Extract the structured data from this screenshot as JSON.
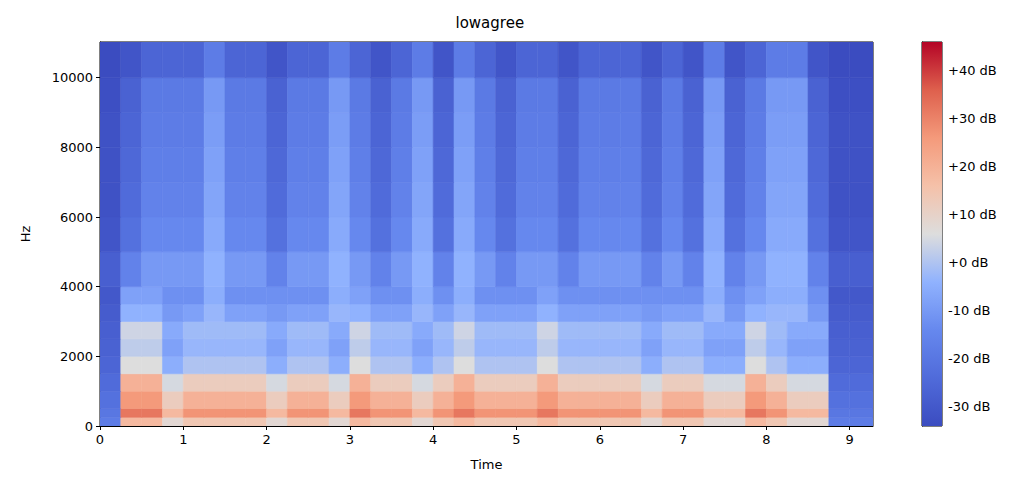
{
  "chart_data": {
    "type": "heatmap",
    "title": "lowagree",
    "x_label": "Time",
    "y_label": "Hz",
    "xlim": [
      0,
      9.28
    ],
    "xticks": [
      0,
      1,
      2,
      3,
      4,
      5,
      6,
      7,
      8,
      9
    ],
    "ylim": [
      0,
      11025
    ],
    "yticks": [
      0,
      2000,
      4000,
      6000,
      8000,
      10000
    ],
    "time_bins": [
      0,
      0.25,
      0.5,
      0.75,
      1.0,
      1.25,
      1.5,
      1.75,
      2.0,
      2.25,
      2.5,
      2.75,
      3.0,
      3.25,
      3.5,
      3.75,
      4.0,
      4.25,
      4.5,
      4.75,
      5.0,
      5.25,
      5.5,
      5.75,
      6.0,
      6.25,
      6.5,
      6.75,
      7.0,
      7.25,
      7.5,
      7.75,
      8.0,
      8.25,
      8.5,
      8.75,
      9.0,
      9.28
    ],
    "freq_bins": [
      0,
      250,
      500,
      1000,
      1500,
      2000,
      2500,
      3000,
      3500,
      4000,
      5000,
      6000,
      7000,
      8000,
      9000,
      10000,
      11025
    ],
    "cells": [
      [
        -18,
        18,
        18,
        8,
        14,
        14,
        14,
        14,
        8,
        14,
        14,
        8,
        18,
        14,
        14,
        8,
        14,
        18,
        14,
        14,
        14,
        18,
        14,
        14,
        14,
        14,
        8,
        14,
        14,
        8,
        8,
        18,
        14,
        8,
        8,
        -18,
        -18
      ],
      [
        -20,
        32,
        32,
        18,
        27,
        27,
        27,
        27,
        18,
        27,
        27,
        18,
        32,
        27,
        27,
        18,
        27,
        32,
        27,
        27,
        27,
        32,
        27,
        27,
        27,
        27,
        18,
        27,
        27,
        18,
        18,
        32,
        27,
        18,
        18,
        -20,
        -20
      ],
      [
        -22,
        26,
        26,
        12,
        20,
        20,
        20,
        20,
        12,
        20,
        20,
        12,
        26,
        20,
        20,
        12,
        20,
        26,
        20,
        20,
        20,
        26,
        20,
        20,
        20,
        20,
        12,
        20,
        20,
        12,
        12,
        26,
        20,
        12,
        12,
        -22,
        -22
      ],
      [
        -24,
        20,
        20,
        5,
        12,
        12,
        12,
        12,
        5,
        12,
        12,
        5,
        20,
        12,
        12,
        5,
        12,
        20,
        12,
        12,
        12,
        20,
        12,
        12,
        12,
        12,
        5,
        12,
        12,
        5,
        5,
        20,
        12,
        5,
        5,
        -24,
        -24
      ],
      [
        -26,
        6,
        6,
        -5,
        0,
        0,
        0,
        0,
        -5,
        0,
        0,
        -5,
        6,
        0,
        0,
        -5,
        0,
        6,
        0,
        0,
        0,
        6,
        0,
        0,
        0,
        0,
        -5,
        0,
        0,
        -5,
        -5,
        6,
        0,
        -5,
        -5,
        -26,
        -26
      ],
      [
        -27,
        2,
        2,
        -8,
        -3,
        -3,
        -3,
        -3,
        -8,
        -3,
        -3,
        -8,
        2,
        -3,
        -3,
        -8,
        -3,
        2,
        -3,
        -3,
        -3,
        2,
        -3,
        -3,
        -3,
        -3,
        -8,
        -3,
        -3,
        -8,
        -8,
        2,
        -3,
        -8,
        -8,
        -27,
        -27
      ],
      [
        -28,
        4,
        4,
        -6,
        -2,
        -2,
        -2,
        -2,
        -6,
        -2,
        -2,
        -6,
        4,
        -2,
        -2,
        -6,
        -2,
        4,
        -2,
        -2,
        -2,
        4,
        -2,
        -2,
        -2,
        -2,
        -6,
        -2,
        -2,
        -6,
        -6,
        4,
        -2,
        -6,
        -6,
        -28,
        -28
      ],
      [
        -29,
        -4,
        -4,
        -10,
        -8,
        -3,
        -8,
        -8,
        -10,
        -8,
        -8,
        -3,
        -4,
        -8,
        -8,
        -3,
        -8,
        -3,
        -8,
        -8,
        -8,
        -4,
        -8,
        -8,
        -8,
        -8,
        -10,
        -8,
        -8,
        -3,
        -10,
        -4,
        -3,
        -3,
        -10,
        -29,
        -29
      ],
      [
        -30,
        -8,
        -8,
        -12,
        -12,
        -5,
        -12,
        -12,
        -12,
        -12,
        -12,
        -5,
        -8,
        -12,
        -12,
        -5,
        -12,
        -5,
        -12,
        -12,
        -12,
        -8,
        -12,
        -12,
        -12,
        -12,
        -12,
        -12,
        -12,
        -5,
        -12,
        -8,
        -5,
        -5,
        -12,
        -30,
        -30
      ],
      [
        -28,
        -16,
        -10,
        -10,
        -10,
        -4,
        -10,
        -10,
        -16,
        -10,
        -10,
        -4,
        -10,
        -16,
        -10,
        -4,
        -16,
        -4,
        -10,
        -16,
        -10,
        -10,
        -16,
        -10,
        -10,
        -10,
        -16,
        -10,
        -16,
        -4,
        -16,
        -10,
        -4,
        -4,
        -16,
        -28,
        -28
      ],
      [
        -31,
        -22,
        -14,
        -14,
        -14,
        -6,
        -14,
        -14,
        -22,
        -14,
        -14,
        -6,
        -14,
        -22,
        -14,
        -6,
        -22,
        -6,
        -14,
        -22,
        -14,
        -14,
        -22,
        -14,
        -14,
        -14,
        -22,
        -14,
        -22,
        -6,
        -22,
        -14,
        -6,
        -6,
        -22,
        -31,
        -31
      ],
      [
        -32,
        -24,
        -16,
        -16,
        -16,
        -7,
        -16,
        -16,
        -24,
        -16,
        -16,
        -7,
        -16,
        -24,
        -16,
        -7,
        -24,
        -7,
        -16,
        -24,
        -16,
        -16,
        -24,
        -16,
        -16,
        -16,
        -24,
        -16,
        -24,
        -7,
        -24,
        -16,
        -7,
        -7,
        -24,
        -32,
        -32
      ],
      [
        -32,
        -25,
        -17,
        -17,
        -17,
        -8,
        -17,
        -17,
        -25,
        -17,
        -17,
        -8,
        -17,
        -25,
        -17,
        -8,
        -25,
        -8,
        -17,
        -25,
        -17,
        -17,
        -25,
        -17,
        -17,
        -17,
        -25,
        -17,
        -25,
        -8,
        -25,
        -17,
        -8,
        -8,
        -25,
        -32,
        -32
      ],
      [
        -32,
        -26,
        -18,
        -18,
        -18,
        -9,
        -18,
        -18,
        -26,
        -18,
        -18,
        -9,
        -18,
        -26,
        -18,
        -9,
        -26,
        -9,
        -18,
        -26,
        -18,
        -18,
        -26,
        -18,
        -18,
        -18,
        -26,
        -18,
        -26,
        -9,
        -26,
        -18,
        -9,
        -9,
        -26,
        -32,
        -32
      ],
      [
        -33,
        -27,
        -19,
        -19,
        -19,
        -10,
        -19,
        -19,
        -27,
        -19,
        -19,
        -10,
        -19,
        -27,
        -19,
        -10,
        -27,
        -10,
        -19,
        -27,
        -19,
        -19,
        -27,
        -19,
        -19,
        -19,
        -27,
        -19,
        -27,
        -10,
        -27,
        -19,
        -10,
        -10,
        -27,
        -33,
        -33
      ],
      [
        -34,
        -31,
        -26,
        -26,
        -26,
        -18,
        -26,
        -26,
        -31,
        -26,
        -26,
        -18,
        -26,
        -31,
        -26,
        -18,
        -31,
        -18,
        -26,
        -31,
        -26,
        -26,
        -31,
        -26,
        -26,
        -26,
        -31,
        -26,
        -31,
        -18,
        -31,
        -26,
        -18,
        -18,
        -31,
        -34,
        -34
      ]
    ],
    "colorbar": {
      "range": [
        -34,
        46
      ],
      "ticks": [
        {
          "value": -30,
          "label": "-30 dB"
        },
        {
          "value": -20,
          "label": "-20 dB"
        },
        {
          "value": -10,
          "label": "-10 dB"
        },
        {
          "value": 0,
          "label": "+0 dB"
        },
        {
          "value": 10,
          "label": "+10 dB"
        },
        {
          "value": 20,
          "label": "+20 dB"
        },
        {
          "value": 30,
          "label": "+30 dB"
        },
        {
          "value": 40,
          "label": "+40 dB"
        }
      ]
    }
  }
}
